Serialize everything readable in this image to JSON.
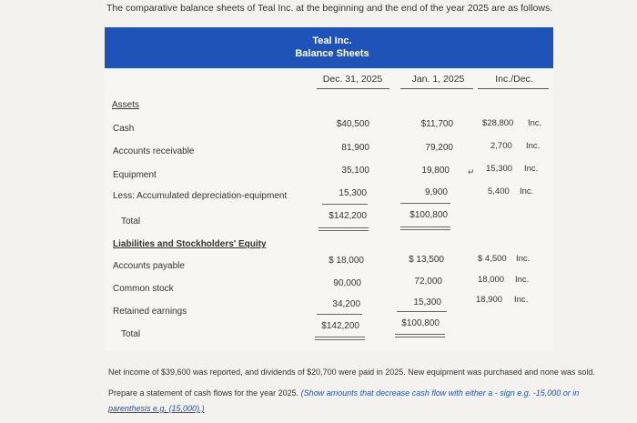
{
  "intro": "The comparative balance sheets of Teal Inc. at the beginning and the end of the year 2025 are as follows.",
  "banner": {
    "company": "Teal Inc.",
    "title": "Balance Sheets"
  },
  "columns": [
    "Dec. 31, 2025",
    "Jan. 1, 2025",
    "Inc./Dec."
  ],
  "assets_header": "Assets",
  "assets": [
    {
      "label": "Cash",
      "dec": "$40,500",
      "jan": "$11,700",
      "change": "$28,800",
      "dir": "Inc."
    },
    {
      "label": "Accounts receivable",
      "dec": "81,900",
      "jan": "79,200",
      "change": "2,700",
      "dir": "Inc."
    },
    {
      "label": "Equipment",
      "dec": "35,100",
      "jan": "19,800",
      "change": "15,300",
      "dir": "Inc."
    },
    {
      "label": "Less: Accumulated depreciation-equipment",
      "dec": "15,300",
      "jan": "9,900",
      "change": "5,400",
      "dir": "Inc."
    }
  ],
  "assets_total": {
    "label": "Total",
    "dec": "$142,200",
    "jan": "$100,800"
  },
  "liab_header": "Liabilities and Stockholders' Equity",
  "liabilities": [
    {
      "label": "Accounts payable",
      "dec": "$ 18,000",
      "jan": "$ 13,500",
      "change": "$ 4,500",
      "dir": "Inc."
    },
    {
      "label": "Common stock",
      "dec": "90,000",
      "jan": "72,000",
      "change": "18,000",
      "dir": "Inc."
    },
    {
      "label": "Retained earnings",
      "dec": "34,200",
      "jan": "15,300",
      "change": "18,900",
      "dir": "Inc."
    }
  ],
  "liab_total": {
    "label": "Total",
    "dec": "$142,200",
    "jan": "$100,800"
  },
  "note1": "Net income of $39,600 was reported, and dividends of $20,700 were paid in 2025. New equipment was purchased and none was sold.",
  "note2_plain": "Prepare a statement of cash flows for the year 2025. ",
  "note2_blue": "(Show amounts that decrease cash flow with either a - sign e.g. -15,000 or in",
  "note3_blue": "parenthesis e.g. (15,000).)"
}
